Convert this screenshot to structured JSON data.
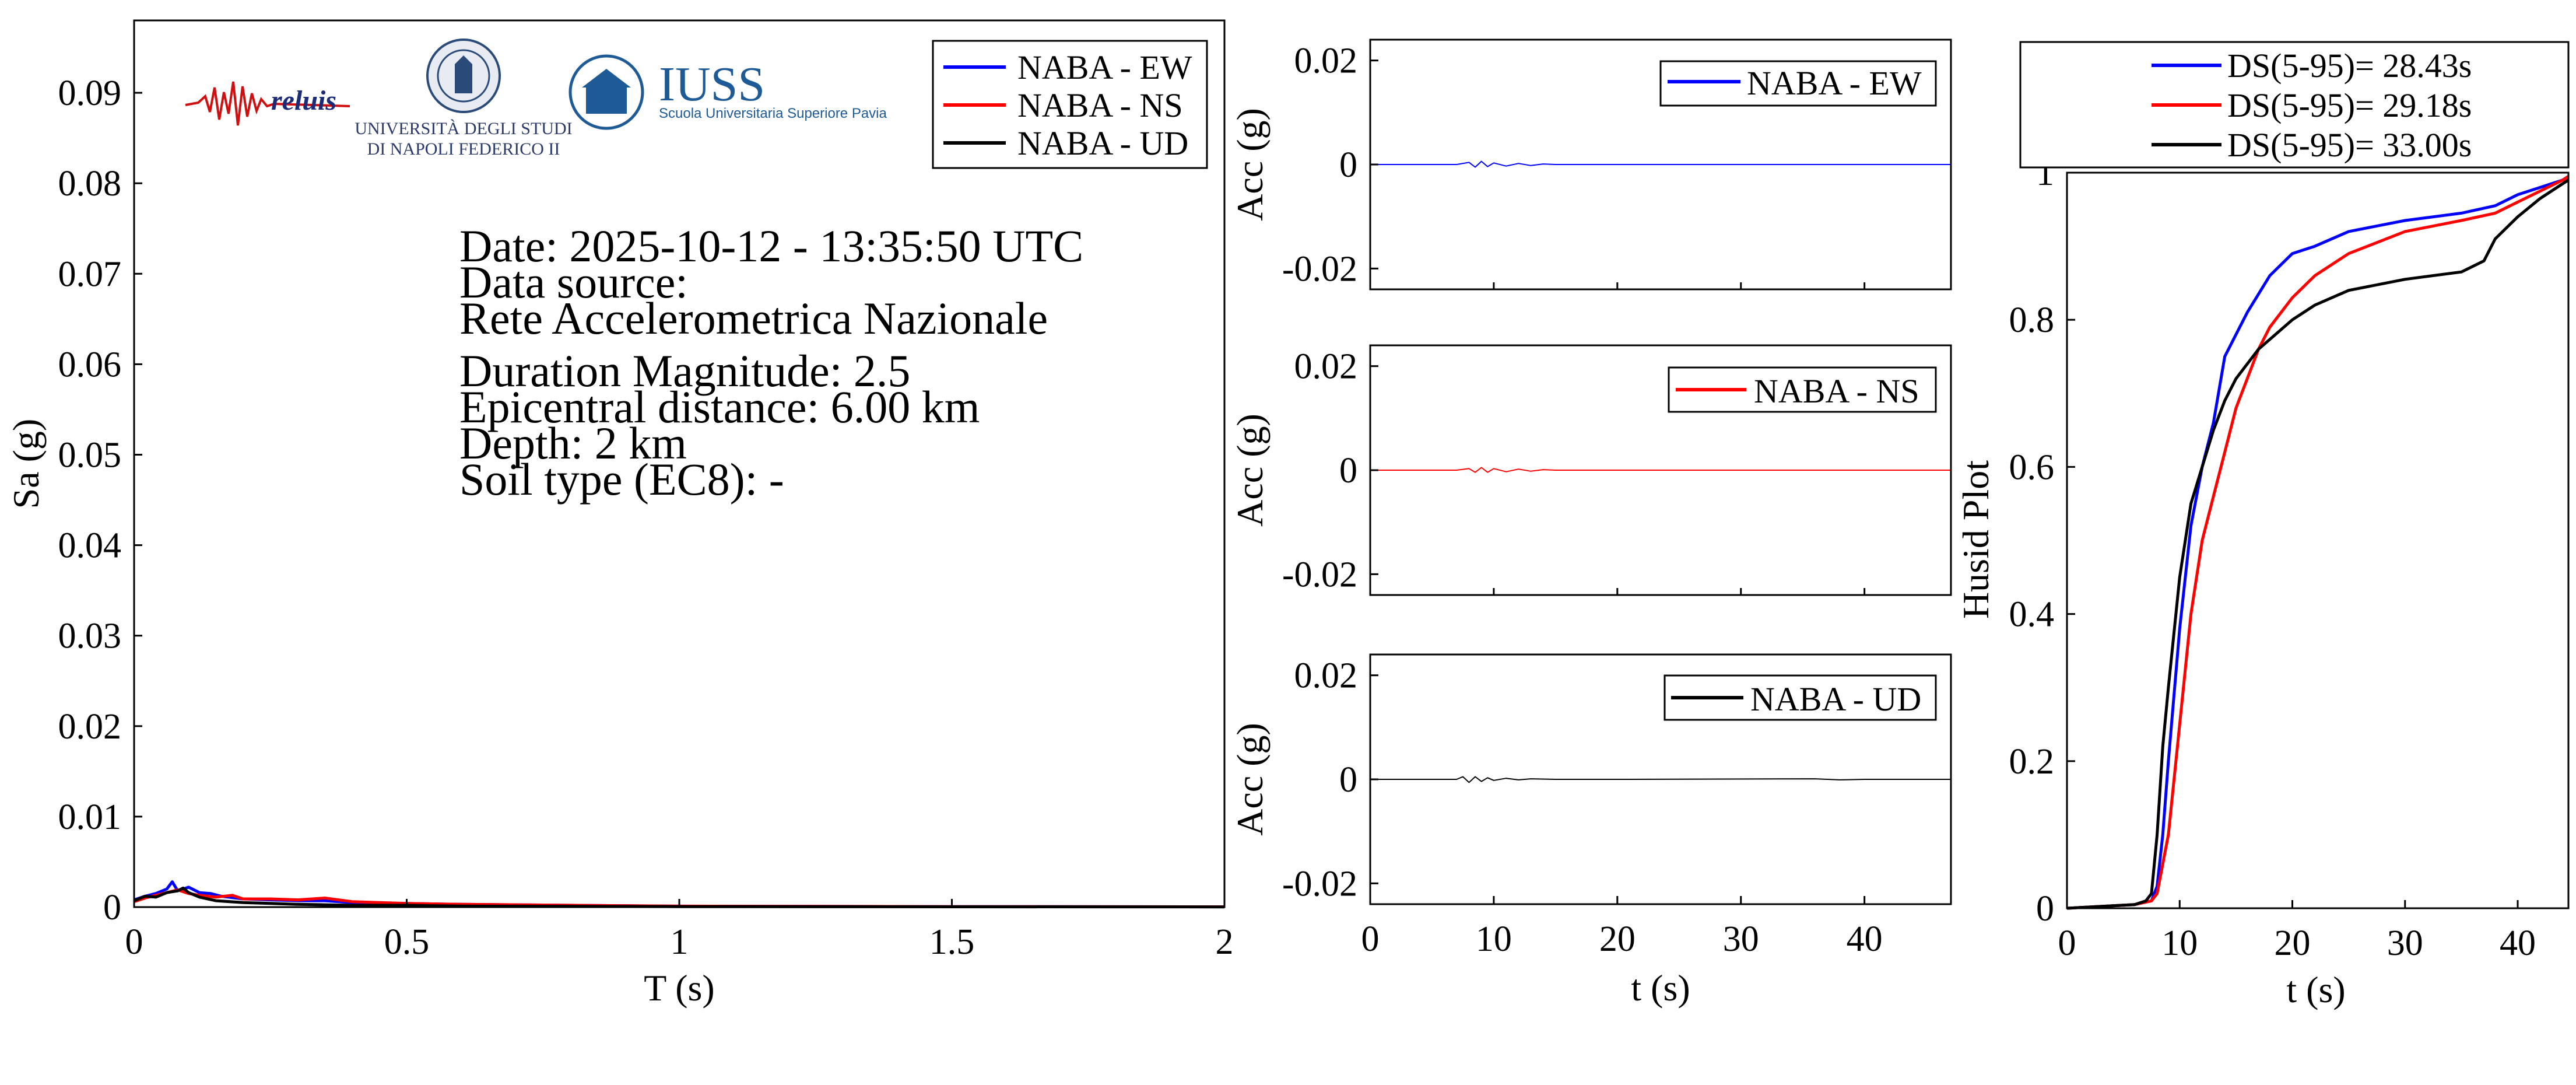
{
  "chart_data": [
    {
      "id": "spectrum",
      "type": "line",
      "xlabel": "T (s)",
      "ylabel": "Sa (g)",
      "xlim": [
        0,
        2
      ],
      "ylim": [
        0,
        0.098
      ],
      "xticks": [
        0,
        0.5,
        1,
        1.5,
        2
      ],
      "xtick_labels": [
        "0",
        "0.5",
        "1",
        "1.5",
        "2"
      ],
      "yticks": [
        0,
        0.01,
        0.02,
        0.03,
        0.04,
        0.05,
        0.06,
        0.07,
        0.08,
        0.09
      ],
      "ytick_labels": [
        "0",
        "0.01",
        "0.02",
        "0.03",
        "0.04",
        "0.05",
        "0.06",
        "0.07",
        "0.08",
        "0.09"
      ],
      "grid": false,
      "legend_position": "top-right",
      "series": [
        {
          "name": "NABA - EW",
          "color": "#0000ff",
          "x": [
            0,
            0.02,
            0.04,
            0.06,
            0.07,
            0.08,
            0.1,
            0.12,
            0.14,
            0.16,
            0.2,
            0.25,
            0.3,
            0.35,
            0.4,
            0.5,
            0.6,
            0.8,
            1.0,
            1.5,
            2.0
          ],
          "y": [
            0.0008,
            0.0012,
            0.0015,
            0.002,
            0.0028,
            0.0018,
            0.0022,
            0.0016,
            0.0015,
            0.0012,
            0.0009,
            0.0008,
            0.0007,
            0.0007,
            0.0005,
            0.0004,
            0.0003,
            0.0002,
            0.0001,
            5e-05,
            3e-05
          ]
        },
        {
          "name": "NABA - NS",
          "color": "#ff0000",
          "x": [
            0,
            0.02,
            0.04,
            0.06,
            0.08,
            0.1,
            0.12,
            0.15,
            0.18,
            0.2,
            0.25,
            0.3,
            0.35,
            0.4,
            0.5,
            0.6,
            0.8,
            1.0,
            1.5,
            2.0
          ],
          "y": [
            0.0006,
            0.001,
            0.0013,
            0.0016,
            0.0019,
            0.0015,
            0.0013,
            0.0011,
            0.0013,
            0.0009,
            0.0009,
            0.0008,
            0.001,
            0.0006,
            0.0004,
            0.0003,
            0.0002,
            0.0001,
            5e-05,
            3e-05
          ]
        },
        {
          "name": "NABA - UD",
          "color": "#000000",
          "x": [
            0,
            0.02,
            0.04,
            0.06,
            0.08,
            0.09,
            0.1,
            0.12,
            0.15,
            0.2,
            0.25,
            0.3,
            0.4,
            0.5,
            0.6,
            0.8,
            1.0,
            1.5,
            2.0
          ],
          "y": [
            0.0007,
            0.0012,
            0.0011,
            0.0016,
            0.0018,
            0.0021,
            0.0016,
            0.0011,
            0.0007,
            0.0005,
            0.0004,
            0.0003,
            0.0002,
            0.0002,
            0.0001,
            8e-05,
            5e-05,
            3e-05,
            2e-05
          ]
        }
      ]
    },
    {
      "id": "acc-ew",
      "type": "line",
      "xlabel": "",
      "ylabel": "Acc (g)",
      "xlim": [
        0,
        47
      ],
      "ylim": [
        -0.024,
        0.024
      ],
      "yticks": [
        -0.02,
        0,
        0.02
      ],
      "ytick_labels": [
        "-0.02",
        "0",
        "0.02"
      ],
      "grid": false,
      "legend_position": "top-right",
      "series": [
        {
          "name": "NABA - EW",
          "color": "#0000ff",
          "x": [
            0,
            7,
            8,
            8.5,
            9,
            9.5,
            10,
            11,
            12,
            13,
            14,
            15,
            20,
            30,
            40,
            47
          ],
          "y": [
            0,
            0,
            0.0004,
            -0.0005,
            0.0006,
            -0.0004,
            0.0003,
            -0.0003,
            0.0002,
            -0.0002,
            0.0001,
            0,
            0,
            0,
            0,
            0
          ]
        }
      ]
    },
    {
      "id": "acc-ns",
      "type": "line",
      "xlabel": "",
      "ylabel": "Acc (g)",
      "xlim": [
        0,
        47
      ],
      "ylim": [
        -0.024,
        0.024
      ],
      "yticks": [
        -0.02,
        0,
        0.02
      ],
      "ytick_labels": [
        "-0.02",
        "0",
        "0.02"
      ],
      "grid": false,
      "legend_position": "top-right",
      "series": [
        {
          "name": "NABA - NS",
          "color": "#ff0000",
          "x": [
            0,
            7,
            8,
            8.5,
            9,
            9.5,
            10,
            11,
            12,
            13,
            14,
            15,
            20,
            30,
            40,
            47
          ],
          "y": [
            0,
            0,
            0.0003,
            -0.0004,
            0.0005,
            -0.0004,
            0.0003,
            -0.0003,
            0.0002,
            -0.0002,
            0.0001,
            0,
            0,
            0,
            0,
            0
          ]
        }
      ]
    },
    {
      "id": "acc-ud",
      "type": "line",
      "xlabel": "t (s)",
      "ylabel": "Acc (g)",
      "xlim": [
        0,
        47
      ],
      "ylim": [
        -0.024,
        0.024
      ],
      "xticks": [
        0,
        10,
        20,
        30,
        40
      ],
      "xtick_labels": [
        "0",
        "10",
        "20",
        "30",
        "40"
      ],
      "yticks": [
        -0.02,
        0,
        0.02
      ],
      "ytick_labels": [
        "-0.02",
        "0",
        "0.02"
      ],
      "grid": false,
      "legend_position": "top-right",
      "series": [
        {
          "name": "NABA - UD",
          "color": "#000000",
          "x": [
            0,
            7,
            7.5,
            8,
            8.5,
            9,
            9.5,
            10,
            11,
            12,
            13,
            15,
            20,
            36,
            38,
            40,
            47
          ],
          "y": [
            0,
            0,
            0.0005,
            -0.0006,
            0.0005,
            -0.0004,
            0.0003,
            -0.0002,
            0.0002,
            -0.0001,
            0.0001,
            0,
            0,
            0.0001,
            -0.0001,
            0,
            0
          ]
        }
      ]
    },
    {
      "id": "husid",
      "type": "line",
      "xlabel": "t (s)",
      "ylabel": "Husid Plot",
      "xlim": [
        0,
        44.5
      ],
      "ylim": [
        0,
        1
      ],
      "xticks": [
        0,
        10,
        20,
        30,
        40
      ],
      "xtick_labels": [
        "0",
        "10",
        "20",
        "30",
        "40"
      ],
      "yticks": [
        0,
        0.2,
        0.4,
        0.6,
        0.8,
        1
      ],
      "ytick_labels": [
        "0",
        "0.2",
        "0.4",
        "0.6",
        "0.8",
        "1"
      ],
      "grid": false,
      "legend_position": "above",
      "series": [
        {
          "name": "DS(5-95)= 28.43s",
          "color": "#0000ff",
          "x": [
            0,
            6,
            7.5,
            8,
            8.5,
            9,
            10,
            11,
            12,
            13,
            14,
            15,
            16,
            18,
            20,
            22,
            25,
            30,
            35,
            38,
            40,
            42,
            44,
            44.5
          ],
          "y": [
            0,
            0.005,
            0.01,
            0.03,
            0.1,
            0.2,
            0.38,
            0.52,
            0.6,
            0.66,
            0.75,
            0.78,
            0.81,
            0.86,
            0.89,
            0.9,
            0.92,
            0.935,
            0.945,
            0.955,
            0.97,
            0.98,
            0.99,
            0.995
          ]
        },
        {
          "name": "DS(5-95)= 29.18s",
          "color": "#ff0000",
          "x": [
            0,
            6,
            7.5,
            8,
            9,
            10,
            11,
            12,
            13,
            14,
            15,
            16,
            17,
            18,
            20,
            22,
            25,
            30,
            35,
            38,
            40,
            42,
            44,
            44.5
          ],
          "y": [
            0,
            0.005,
            0.01,
            0.02,
            0.1,
            0.25,
            0.4,
            0.5,
            0.56,
            0.62,
            0.68,
            0.72,
            0.76,
            0.79,
            0.83,
            0.86,
            0.89,
            0.92,
            0.935,
            0.945,
            0.96,
            0.975,
            0.99,
            0.995
          ]
        },
        {
          "name": "DS(5-95)= 33.00s",
          "color": "#000000",
          "x": [
            0,
            6,
            7,
            7.5,
            8,
            8.5,
            9,
            10,
            11,
            12,
            13,
            14,
            15,
            17,
            20,
            22,
            25,
            30,
            35,
            37,
            38,
            40,
            42,
            44,
            44.5
          ],
          "y": [
            0,
            0.005,
            0.01,
            0.02,
            0.1,
            0.22,
            0.3,
            0.45,
            0.55,
            0.6,
            0.65,
            0.69,
            0.72,
            0.76,
            0.8,
            0.82,
            0.84,
            0.855,
            0.865,
            0.88,
            0.91,
            0.94,
            0.965,
            0.985,
            0.99
          ]
        }
      ]
    }
  ],
  "event_info": {
    "date": "Date: 2025-10-12 - 13:35:50 UTC",
    "source_label": "Data source:",
    "source_name": "Rete Accelerometrica Nazionale",
    "magnitude": "Duration Magnitude: 2.5",
    "distance": "Epicentral distance: 6.00 km",
    "depth": "Depth: 2 km",
    "soil": "Soil type (EC8): -"
  },
  "logos": {
    "reluis": "reluis",
    "unina_line1": "UNIVERSITÀ DEGLI STUDI",
    "unina_line2": "DI NAPOLI FEDERICO II",
    "iuss_name": "IUSS",
    "iuss_sub": "Scuola Universitaria Superiore Pavia"
  }
}
